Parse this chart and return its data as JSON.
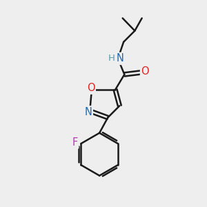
{
  "bg_color": "#eeeeee",
  "bond_color": "#1a1a1a",
  "bond_width": 1.8,
  "atom_colors": {
    "N": "#1a6ab5",
    "H": "#5a9aaa",
    "O_ring": "#dd2222",
    "O_carbonyl": "#dd2222",
    "F": "#bb33bb",
    "C": "#1a1a1a"
  },
  "font_size": 10.5,
  "fig_size": [
    3.0,
    3.0
  ],
  "dpi": 100
}
